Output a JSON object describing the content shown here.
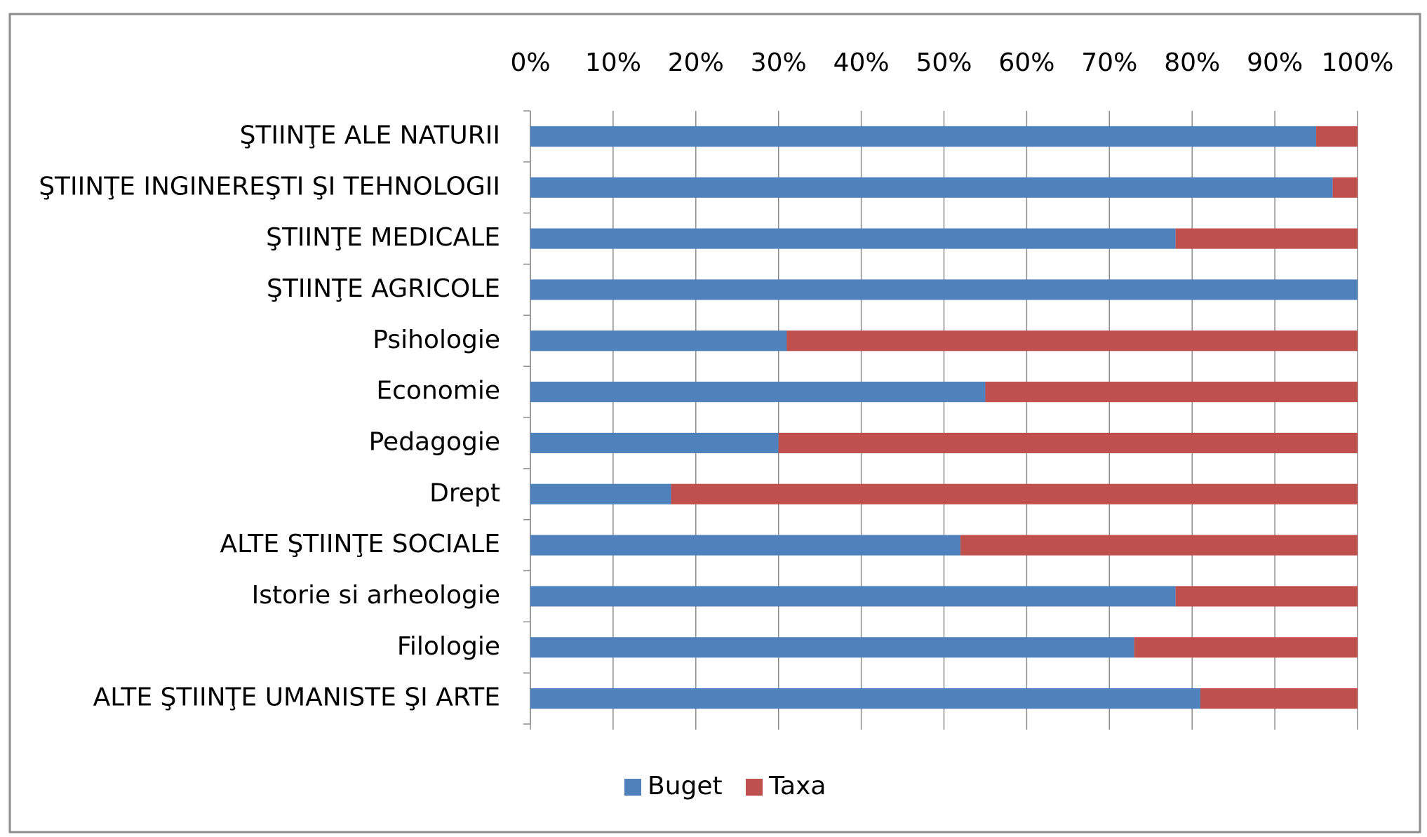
{
  "chart_data": {
    "type": "stacked_bar_100_horizontal",
    "categories": [
      "ŞTIINŢE ALE NATURII",
      "ŞTIINŢE INGINEREŞTI ŞI TEHNOLOGII",
      "ŞTIINŢE MEDICALE",
      "ŞTIINŢE AGRICOLE",
      "Psihologie",
      "Economie",
      "Pedagogie",
      "Drept",
      "ALTE ŞTIINŢE SOCIALE",
      "Istorie si arheologie",
      "Filologie",
      "ALTE ŞTIINŢE UMANISTE ŞI ARTE"
    ],
    "series": [
      {
        "name": "Buget",
        "color": "#4f81bd",
        "values": [
          95,
          97,
          78,
          100,
          31,
          55,
          30,
          17,
          52,
          78,
          73,
          81
        ]
      },
      {
        "name": "Taxa",
        "color": "#c0504d",
        "values": [
          5,
          3,
          22,
          0,
          69,
          45,
          70,
          83,
          48,
          22,
          27,
          19
        ]
      }
    ],
    "xlim": [
      0,
      100
    ],
    "xticks": [
      {
        "value": 0,
        "label": "0%"
      },
      {
        "value": 10,
        "label": "10%"
      },
      {
        "value": 20,
        "label": "20%"
      },
      {
        "value": 30,
        "label": "30%"
      },
      {
        "value": 40,
        "label": "40%"
      },
      {
        "value": 50,
        "label": "50%"
      },
      {
        "value": 60,
        "label": "60%"
      },
      {
        "value": 70,
        "label": "70%"
      },
      {
        "value": 80,
        "label": "80%"
      },
      {
        "value": 90,
        "label": "90%"
      },
      {
        "value": 100,
        "label": "100%"
      }
    ],
    "grid": true,
    "legend": "bottom"
  }
}
